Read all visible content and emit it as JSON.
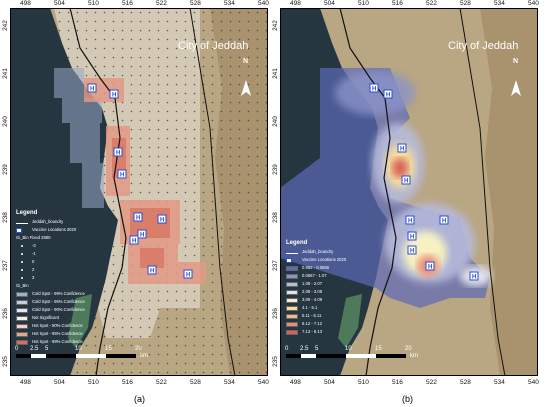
{
  "panel_a": {
    "city_label": "City of Jeddah",
    "north_label": "N",
    "top_ticks": [
      "498",
      "504",
      "510",
      "516",
      "522",
      "528",
      "534",
      "540"
    ],
    "bottom_ticks": [
      "498",
      "504",
      "510",
      "516",
      "522",
      "528",
      "534",
      "540"
    ],
    "left_ticks": [
      "242",
      "241",
      "240",
      "239",
      "238",
      "237",
      "236",
      "235"
    ],
    "legend": {
      "title": "Legend",
      "items": [
        {
          "label": "Jeddah_boundry",
          "color": "#ffffff",
          "kind": "line"
        },
        {
          "label": "Vaccine Locations 2020",
          "color": "#2a4bd6",
          "kind": "H"
        },
        {
          "label": "Gi_Bin Fixed 2880",
          "color": "",
          "kind": "text"
        },
        {
          "label": "-3",
          "color": "",
          "kind": "dot"
        },
        {
          "label": "-1",
          "color": "",
          "kind": "dot"
        },
        {
          "label": "0",
          "color": "",
          "kind": "dot"
        },
        {
          "label": "2",
          "color": "",
          "kind": "dot"
        },
        {
          "label": "3",
          "color": "",
          "kind": "dot"
        },
        {
          "label": "Gi_Bin",
          "color": "",
          "kind": "text"
        },
        {
          "label": "Cold Spot - 99% Confidence",
          "color": "#9fb0cf",
          "kind": "swatch"
        },
        {
          "label": "Cold Spot - 95% Confidence",
          "color": "#c3cde0",
          "kind": "swatch"
        },
        {
          "label": "Cold Spot - 90% Confidence",
          "color": "#e2e7f0",
          "kind": "swatch"
        },
        {
          "label": "Not Significant",
          "color": "#f4f1ea",
          "kind": "swatch"
        },
        {
          "label": "Hot Spot - 90% Confidence",
          "color": "#f0d2c7",
          "kind": "swatch"
        },
        {
          "label": "Hot Spot - 95% Confidence",
          "color": "#e7a693",
          "kind": "swatch"
        },
        {
          "label": "Hot Spot - 99% Confidence",
          "color": "#d5705c",
          "kind": "swatch"
        }
      ]
    },
    "scale": [
      "0",
      "2.5",
      "5",
      "10",
      "15",
      "20"
    ],
    "scale_unit": "km"
  },
  "panel_b": {
    "city_label": "City of Jeddah",
    "north_label": "N",
    "top_ticks": [
      "498",
      "504",
      "510",
      "516",
      "522",
      "528",
      "534",
      "540"
    ],
    "bottom_ticks": [
      "498",
      "504",
      "510",
      "516",
      "522",
      "528",
      "534",
      "540"
    ],
    "left_ticks": [
      "242",
      "241",
      "240",
      "239",
      "238",
      "237",
      "236",
      "235"
    ],
    "legend": {
      "title": "Legend",
      "items": [
        {
          "label": "Jeddah_boundry",
          "color": "#ffffff",
          "kind": "line"
        },
        {
          "label": "Vaccine Locations 2020",
          "color": "#2a4bd6",
          "kind": "H"
        },
        {
          "label": "0.952 - 0.0566",
          "color": "#5d6ab8",
          "kind": "swatch"
        },
        {
          "label": "0.0567 - 1.07",
          "color": "#8a93c9",
          "kind": "swatch"
        },
        {
          "label": "1.08 - 2.07",
          "color": "#b6bbdb",
          "kind": "swatch"
        },
        {
          "label": "2.08 - 3.08",
          "color": "#e1e2ea",
          "kind": "swatch"
        },
        {
          "label": "3.09 - 4.09",
          "color": "#f7f1c2",
          "kind": "swatch"
        },
        {
          "label": "4.1 - 5.1",
          "color": "#f6dd9b",
          "kind": "swatch"
        },
        {
          "label": "5.11 - 6.11",
          "color": "#f2b98a",
          "kind": "swatch"
        },
        {
          "label": "6.12 - 7.12",
          "color": "#e88e78",
          "kind": "swatch"
        },
        {
          "label": "7.13 - 8.13",
          "color": "#d96059",
          "kind": "swatch"
        }
      ]
    },
    "scale": [
      "0",
      "2.5",
      "5",
      "10",
      "15",
      "20"
    ],
    "scale_unit": "km"
  },
  "captions": {
    "a": "(a)",
    "b": "(b)"
  },
  "colors": {
    "sea": "#263640",
    "land": "#b9a682",
    "urban": "#cdbfa5",
    "boundary": "#111111",
    "hotspot": "#e39a86",
    "coldspot": "#97a7c8"
  }
}
